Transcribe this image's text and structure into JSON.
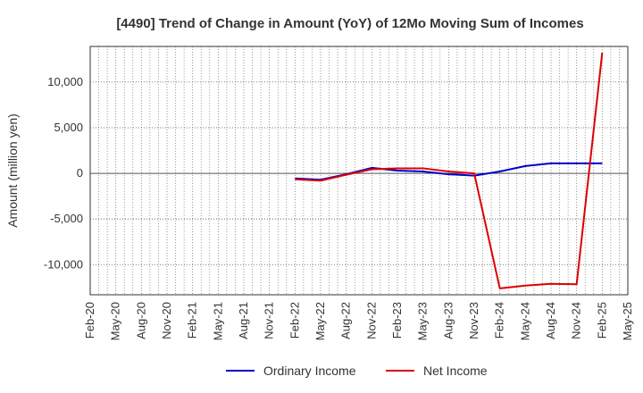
{
  "chart_data": {
    "type": "line",
    "title": "[4490]  Trend of Change in Amount (YoY) of 12Mo Moving Sum of Incomes",
    "xlabel": "",
    "ylabel": "Amount (million yen)",
    "categories": [
      "Feb-20",
      "May-20",
      "Aug-20",
      "Nov-20",
      "Feb-21",
      "May-21",
      "Aug-21",
      "Nov-21",
      "Feb-22",
      "May-22",
      "Aug-22",
      "Nov-22",
      "Feb-23",
      "May-23",
      "Aug-23",
      "Nov-23",
      "Feb-24",
      "May-24",
      "Aug-24",
      "Nov-24",
      "Feb-25",
      "May-25"
    ],
    "yticks": [
      10000,
      5000,
      0,
      -5000,
      -10000
    ],
    "ytick_labels": [
      "10,000",
      "5,000",
      "0",
      "-5,000",
      "-10,000"
    ],
    "ylim": [
      -13300,
      13900
    ],
    "grid": true,
    "legend_position": "bottom",
    "series": [
      {
        "name": "Ordinary Income",
        "color": "#0000cc",
        "values": [
          null,
          null,
          null,
          null,
          null,
          null,
          null,
          null,
          -550,
          -700,
          -100,
          600,
          300,
          200,
          -100,
          -250,
          200,
          800,
          1100,
          1100,
          1100,
          null
        ]
      },
      {
        "name": "Net Income",
        "color": "#dd0000",
        "values": [
          null,
          null,
          null,
          null,
          null,
          null,
          null,
          null,
          -650,
          -800,
          -150,
          450,
          550,
          550,
          200,
          0,
          -12600,
          -12300,
          -12100,
          -12150,
          13200,
          null
        ]
      }
    ]
  }
}
